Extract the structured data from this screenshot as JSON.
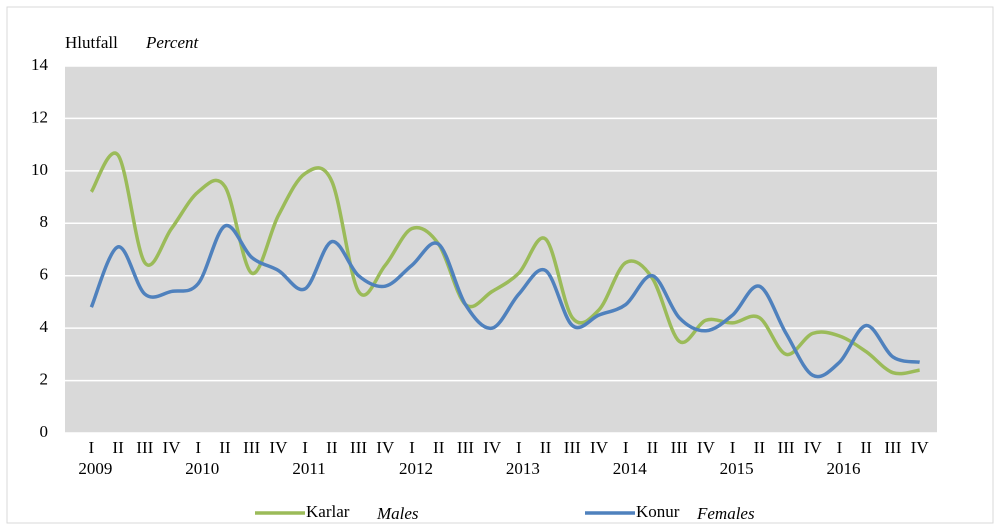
{
  "chart_data": {
    "type": "line",
    "y_label": "Hlutfall",
    "y_label_en": "Percent",
    "categories": [
      "I",
      "II",
      "III",
      "IV",
      "I",
      "II",
      "III",
      "IV",
      "I",
      "II",
      "III",
      "IV",
      "I",
      "II",
      "III",
      "IV",
      "I",
      "II",
      "III",
      "IV",
      "I",
      "II",
      "III",
      "IV",
      "I",
      "II",
      "III",
      "IV",
      "I",
      "II",
      "III",
      "IV"
    ],
    "groups": [
      "2009",
      "2010",
      "2011",
      "2012",
      "2013",
      "2014",
      "2015",
      "2016"
    ],
    "series": [
      {
        "name": "Karlar",
        "name_en": "Males",
        "color": "#9bbb59",
        "values": [
          9.2,
          10.6,
          6.5,
          7.8,
          9.2,
          9.4,
          6.1,
          8.3,
          9.9,
          9.6,
          5.4,
          6.4,
          7.8,
          7.2,
          4.9,
          5.4,
          6.1,
          7.4,
          4.4,
          4.7,
          6.5,
          5.9,
          3.5,
          4.3,
          4.2,
          4.4,
          3.0,
          3.8,
          3.7,
          3.1,
          2.3,
          2.4
        ]
      },
      {
        "name": "Konur",
        "name_en": "Females",
        "color": "#4f81bd",
        "values": [
          4.8,
          7.1,
          5.3,
          5.4,
          5.7,
          7.9,
          6.7,
          6.2,
          5.5,
          7.3,
          6.0,
          5.6,
          6.4,
          7.2,
          4.9,
          4.0,
          5.3,
          6.2,
          4.1,
          4.5,
          4.9,
          6.0,
          4.4,
          3.9,
          4.5,
          5.6,
          3.8,
          2.2,
          2.7,
          4.1,
          2.9,
          2.7
        ]
      }
    ],
    "ylim": [
      0,
      14
    ],
    "yticks": [
      0,
      2,
      4,
      6,
      8,
      10,
      12,
      14
    ],
    "grid": true,
    "plot_background": "#d9d9d9"
  }
}
